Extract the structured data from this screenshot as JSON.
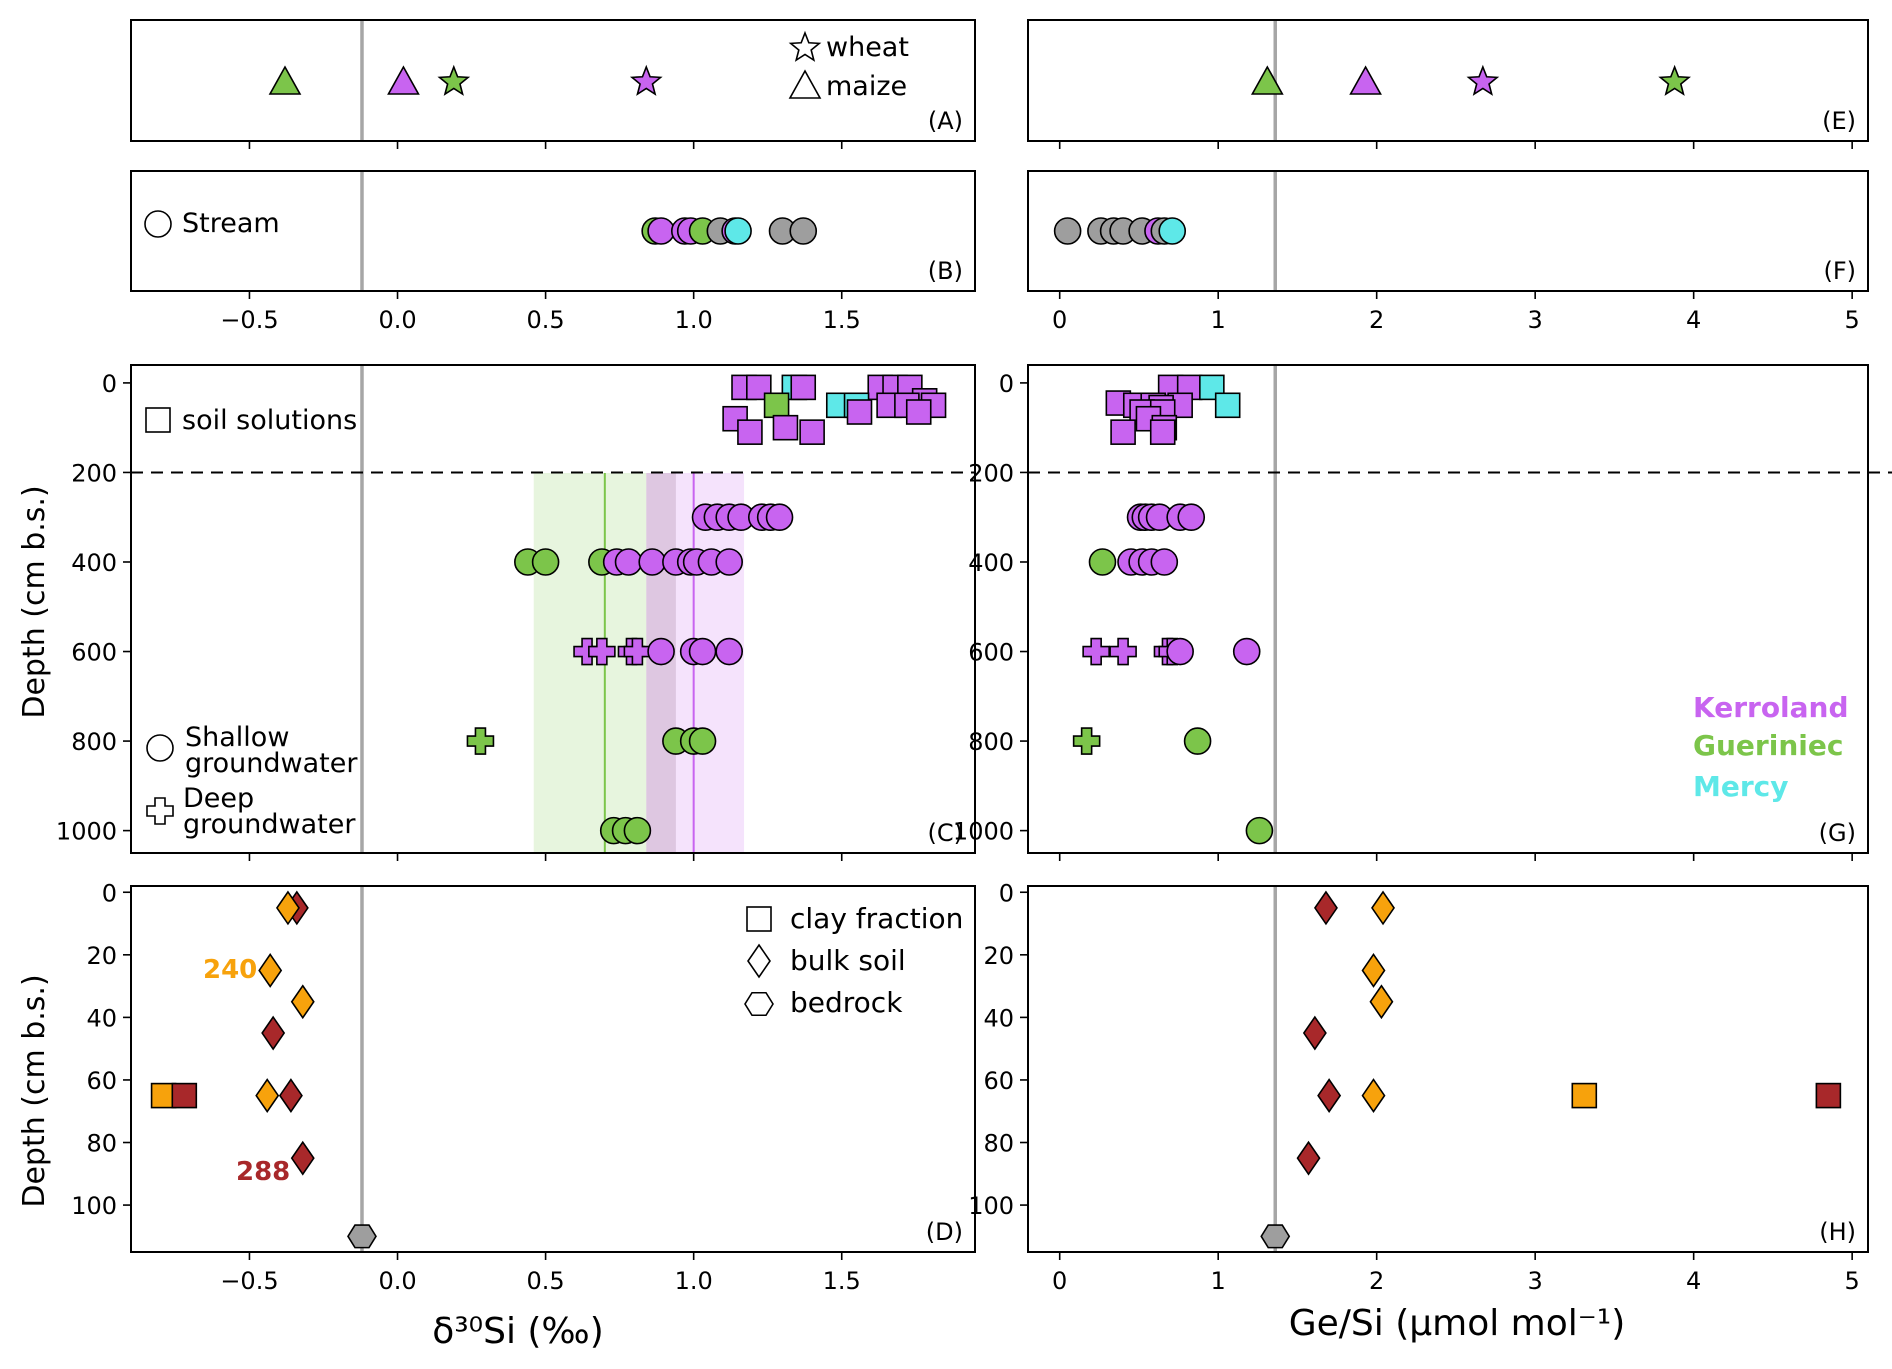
{
  "figure": {
    "xlabel_left": "δ³⁰Si (‰)",
    "xlabel_right": "Ge/Si (µmol mol⁻¹)",
    "ylabel_c": "Depth (cm b.s.)",
    "ylabel_d": "Depth (cm b.s.)"
  },
  "colors": {
    "purple": "#c864f0",
    "green": "#7cc54a",
    "cyan": "#5ee8e8",
    "grey": "#9e9e9e",
    "orange": "#f7a20c",
    "darkred": "#a8282a",
    "refline": "#a6a6a6"
  },
  "legends": {
    "wheat": "wheat",
    "maize": "maize",
    "stream": "Stream",
    "soil_solutions": "soil solutions",
    "shallow_gw": [
      "Shallow",
      "groundwater"
    ],
    "deep_gw": [
      "Deep",
      "groundwater"
    ],
    "sites": [
      {
        "name": "Kerroland",
        "color": "#c864f0"
      },
      {
        "name": "Gueriniec",
        "color": "#7cc54a"
      },
      {
        "name": "Mercy",
        "color": "#5ee8e8"
      }
    ],
    "clay": "clay fraction",
    "bulk": "bulk soil",
    "bedrock": "bedrock",
    "ann_240": "240",
    "ann_288": "288"
  },
  "chart_data": [
    {
      "id": "A",
      "label": "(A)",
      "type": "scatter",
      "xlim": [
        -0.9,
        1.95
      ],
      "xticks": [
        -0.5,
        0.0,
        0.5,
        1.0,
        1.5
      ],
      "refline_x": -0.12,
      "points": [
        {
          "x": -0.38,
          "marker": "triangle",
          "site": "Gueriniec",
          "color": "green"
        },
        {
          "x": 0.02,
          "marker": "triangle",
          "site": "Kerroland",
          "color": "purple"
        },
        {
          "x": 0.19,
          "marker": "star",
          "site": "Gueriniec",
          "color": "green"
        },
        {
          "x": 0.84,
          "marker": "star",
          "site": "Kerroland",
          "color": "purple"
        }
      ]
    },
    {
      "id": "B",
      "label": "(B)",
      "type": "scatter",
      "xlim": [
        -0.9,
        1.95
      ],
      "xticks": [
        -0.5,
        0.0,
        0.5,
        1.0,
        1.5
      ],
      "xticklabels": [
        "−0.5",
        "0.0",
        "0.5",
        "1.0",
        "1.5"
      ],
      "refline_x": -0.12,
      "points": [
        {
          "x": 0.87,
          "color": "green"
        },
        {
          "x": 0.89,
          "color": "purple"
        },
        {
          "x": 0.97,
          "color": "purple"
        },
        {
          "x": 0.99,
          "color": "purple"
        },
        {
          "x": 1.03,
          "color": "green"
        },
        {
          "x": 1.09,
          "color": "grey"
        },
        {
          "x": 1.14,
          "color": "purple"
        },
        {
          "x": 1.15,
          "color": "cyan"
        },
        {
          "x": 1.3,
          "color": "grey"
        },
        {
          "x": 1.37,
          "color": "grey"
        }
      ]
    },
    {
      "id": "C",
      "label": "(C)",
      "type": "scatter",
      "xlim": [
        -0.9,
        1.95
      ],
      "ylim": [
        1050,
        -40
      ],
      "xticks": [
        -0.5,
        0.0,
        0.5,
        1.0,
        1.5
      ],
      "yticks": [
        0,
        200,
        400,
        600,
        800,
        1000
      ],
      "refline_x": -0.12,
      "dashed_y": 200,
      "bands": [
        {
          "x0": 0.46,
          "x1": 0.84,
          "color": "green",
          "mean": 0.7
        },
        {
          "x0": 0.84,
          "x1": 1.17,
          "color": "purple",
          "mean": 1.0
        }
      ],
      "points": [
        {
          "x": 1.17,
          "y": 10,
          "marker": "square",
          "color": "purple"
        },
        {
          "x": 1.22,
          "y": 10,
          "marker": "square",
          "color": "purple"
        },
        {
          "x": 1.34,
          "y": 10,
          "marker": "square",
          "color": "cyan"
        },
        {
          "x": 1.37,
          "y": 10,
          "marker": "square",
          "color": "purple"
        },
        {
          "x": 1.63,
          "y": 10,
          "marker": "square",
          "color": "purple"
        },
        {
          "x": 1.68,
          "y": 10,
          "marker": "square",
          "color": "purple"
        },
        {
          "x": 1.73,
          "y": 10,
          "marker": "square",
          "color": "purple"
        },
        {
          "x": 1.78,
          "y": 40,
          "marker": "square",
          "color": "purple"
        },
        {
          "x": 1.28,
          "y": 50,
          "marker": "square",
          "color": "green"
        },
        {
          "x": 1.49,
          "y": 50,
          "marker": "square",
          "color": "cyan"
        },
        {
          "x": 1.55,
          "y": 50,
          "marker": "square",
          "color": "cyan"
        },
        {
          "x": 1.66,
          "y": 50,
          "marker": "square",
          "color": "purple"
        },
        {
          "x": 1.72,
          "y": 50,
          "marker": "square",
          "color": "purple"
        },
        {
          "x": 1.81,
          "y": 50,
          "marker": "square",
          "color": "purple"
        },
        {
          "x": 1.56,
          "y": 65,
          "marker": "square",
          "color": "purple"
        },
        {
          "x": 1.76,
          "y": 65,
          "marker": "square",
          "color": "purple"
        },
        {
          "x": 1.14,
          "y": 80,
          "marker": "square",
          "color": "purple"
        },
        {
          "x": 1.31,
          "y": 100,
          "marker": "square",
          "color": "purple"
        },
        {
          "x": 1.19,
          "y": 110,
          "marker": "square",
          "color": "purple"
        },
        {
          "x": 1.4,
          "y": 110,
          "marker": "square",
          "color": "purple"
        },
        {
          "x": 1.04,
          "y": 300,
          "marker": "circle",
          "color": "purple"
        },
        {
          "x": 1.08,
          "y": 300,
          "marker": "circle",
          "color": "purple"
        },
        {
          "x": 1.12,
          "y": 300,
          "marker": "circle",
          "color": "purple"
        },
        {
          "x": 1.16,
          "y": 300,
          "marker": "circle",
          "color": "purple"
        },
        {
          "x": 1.23,
          "y": 300,
          "marker": "circle",
          "color": "purple"
        },
        {
          "x": 1.26,
          "y": 300,
          "marker": "circle",
          "color": "purple"
        },
        {
          "x": 1.29,
          "y": 300,
          "marker": "circle",
          "color": "purple"
        },
        {
          "x": 0.44,
          "y": 400,
          "marker": "circle",
          "color": "green"
        },
        {
          "x": 0.5,
          "y": 400,
          "marker": "circle",
          "color": "green"
        },
        {
          "x": 0.69,
          "y": 400,
          "marker": "circle",
          "color": "green"
        },
        {
          "x": 0.74,
          "y": 400,
          "marker": "circle",
          "color": "purple"
        },
        {
          "x": 0.78,
          "y": 400,
          "marker": "circle",
          "color": "purple"
        },
        {
          "x": 0.86,
          "y": 400,
          "marker": "circle",
          "color": "purple"
        },
        {
          "x": 0.94,
          "y": 400,
          "marker": "circle",
          "color": "purple"
        },
        {
          "x": 0.99,
          "y": 400,
          "marker": "circle",
          "color": "purple"
        },
        {
          "x": 1.01,
          "y": 400,
          "marker": "circle",
          "color": "purple"
        },
        {
          "x": 1.06,
          "y": 400,
          "marker": "circle",
          "color": "purple"
        },
        {
          "x": 1.12,
          "y": 400,
          "marker": "circle",
          "color": "purple"
        },
        {
          "x": 0.64,
          "y": 600,
          "marker": "cross",
          "color": "purple"
        },
        {
          "x": 0.69,
          "y": 600,
          "marker": "cross",
          "color": "purple"
        },
        {
          "x": 0.79,
          "y": 600,
          "marker": "cross",
          "color": "purple"
        },
        {
          "x": 0.81,
          "y": 600,
          "marker": "cross",
          "color": "purple"
        },
        {
          "x": 0.89,
          "y": 600,
          "marker": "circle",
          "color": "purple"
        },
        {
          "x": 1.0,
          "y": 600,
          "marker": "circle",
          "color": "purple"
        },
        {
          "x": 1.03,
          "y": 600,
          "marker": "circle",
          "color": "purple"
        },
        {
          "x": 1.12,
          "y": 600,
          "marker": "circle",
          "color": "purple"
        },
        {
          "x": 0.28,
          "y": 800,
          "marker": "cross",
          "color": "green"
        },
        {
          "x": 0.94,
          "y": 800,
          "marker": "circle",
          "color": "green"
        },
        {
          "x": 1.0,
          "y": 800,
          "marker": "circle",
          "color": "green"
        },
        {
          "x": 1.03,
          "y": 800,
          "marker": "circle",
          "color": "green"
        },
        {
          "x": 0.73,
          "y": 1000,
          "marker": "circle",
          "color": "green"
        },
        {
          "x": 0.77,
          "y": 1000,
          "marker": "circle",
          "color": "green"
        },
        {
          "x": 0.81,
          "y": 1000,
          "marker": "circle",
          "color": "green"
        }
      ]
    },
    {
      "id": "D",
      "label": "(D)",
      "type": "scatter",
      "xlim": [
        -0.9,
        1.95
      ],
      "ylim": [
        115,
        -2
      ],
      "xticks": [
        -0.5,
        0.0,
        0.5,
        1.0,
        1.5
      ],
      "xticklabels": [
        "−0.5",
        "0.0",
        "0.5",
        "1.0",
        "1.5"
      ],
      "yticks": [
        0,
        20,
        40,
        60,
        80,
        100
      ],
      "refline_x": -0.12,
      "points": [
        {
          "x": -0.34,
          "y": 5,
          "marker": "diamond",
          "color": "darkred"
        },
        {
          "x": -0.37,
          "y": 5,
          "marker": "diamond",
          "color": "orange"
        },
        {
          "x": -0.43,
          "y": 25,
          "marker": "diamond",
          "color": "orange"
        },
        {
          "x": -0.32,
          "y": 35,
          "marker": "diamond",
          "color": "orange"
        },
        {
          "x": -0.42,
          "y": 45,
          "marker": "diamond",
          "color": "darkred"
        },
        {
          "x": -0.79,
          "y": 65,
          "marker": "square",
          "color": "orange"
        },
        {
          "x": -0.72,
          "y": 65,
          "marker": "square",
          "color": "darkred"
        },
        {
          "x": -0.44,
          "y": 65,
          "marker": "diamond",
          "color": "orange"
        },
        {
          "x": -0.36,
          "y": 65,
          "marker": "diamond",
          "color": "darkred"
        },
        {
          "x": -0.32,
          "y": 85,
          "marker": "diamond",
          "color": "darkred"
        },
        {
          "x": -0.12,
          "y": 110,
          "marker": "hexagon",
          "color": "grey"
        }
      ]
    },
    {
      "id": "E",
      "label": "(E)",
      "type": "scatter",
      "xlim": [
        -0.2,
        5.1
      ],
      "xticks": [
        0,
        1,
        2,
        3,
        4,
        5
      ],
      "refline_x": 1.36,
      "points": [
        {
          "x": 1.31,
          "marker": "triangle",
          "color": "green"
        },
        {
          "x": 1.93,
          "marker": "triangle",
          "color": "purple"
        },
        {
          "x": 2.67,
          "marker": "star",
          "color": "purple"
        },
        {
          "x": 3.88,
          "marker": "star",
          "color": "green"
        }
      ]
    },
    {
      "id": "F",
      "label": "(F)",
      "type": "scatter",
      "xlim": [
        -0.2,
        5.1
      ],
      "xticks": [
        0,
        1,
        2,
        3,
        4,
        5
      ],
      "xticklabels": [
        "0",
        "1",
        "2",
        "3",
        "4",
        "5"
      ],
      "refline_x": 1.36,
      "points": [
        {
          "x": 0.05,
          "color": "grey"
        },
        {
          "x": 0.26,
          "color": "grey"
        },
        {
          "x": 0.34,
          "color": "grey"
        },
        {
          "x": 0.4,
          "color": "grey"
        },
        {
          "x": 0.52,
          "color": "grey"
        },
        {
          "x": 0.62,
          "color": "purple"
        },
        {
          "x": 0.66,
          "color": "grey"
        },
        {
          "x": 0.71,
          "color": "cyan"
        }
      ]
    },
    {
      "id": "G",
      "label": "(G)",
      "type": "scatter",
      "xlim": [
        -0.2,
        5.1
      ],
      "ylim": [
        1050,
        -40
      ],
      "xticks": [
        0,
        1,
        2,
        3,
        4,
        5
      ],
      "yticks": [
        0,
        200,
        400,
        600,
        800,
        1000
      ],
      "refline_x": 1.36,
      "dashed_y": 200,
      "points": [
        {
          "x": 0.7,
          "y": 10,
          "marker": "square",
          "color": "purple"
        },
        {
          "x": 0.82,
          "y": 10,
          "marker": "square",
          "color": "purple"
        },
        {
          "x": 0.96,
          "y": 10,
          "marker": "square",
          "color": "cyan"
        },
        {
          "x": 0.37,
          "y": 45,
          "marker": "square",
          "color": "purple"
        },
        {
          "x": 0.48,
          "y": 50,
          "marker": "square",
          "color": "purple"
        },
        {
          "x": 0.59,
          "y": 50,
          "marker": "square",
          "color": "purple"
        },
        {
          "x": 0.76,
          "y": 50,
          "marker": "square",
          "color": "purple"
        },
        {
          "x": 1.06,
          "y": 50,
          "marker": "square",
          "color": "cyan"
        },
        {
          "x": 0.64,
          "y": 55,
          "marker": "square",
          "color": "purple"
        },
        {
          "x": 0.52,
          "y": 65,
          "marker": "square",
          "color": "purple"
        },
        {
          "x": 0.65,
          "y": 65,
          "marker": "square",
          "color": "purple"
        },
        {
          "x": 0.56,
          "y": 80,
          "marker": "square",
          "color": "purple"
        },
        {
          "x": 0.66,
          "y": 100,
          "marker": "square",
          "color": "purple"
        },
        {
          "x": 0.4,
          "y": 110,
          "marker": "square",
          "color": "purple"
        },
        {
          "x": 0.65,
          "y": 110,
          "marker": "square",
          "color": "purple"
        },
        {
          "x": 0.51,
          "y": 300,
          "marker": "circle",
          "color": "purple"
        },
        {
          "x": 0.54,
          "y": 300,
          "marker": "circle",
          "color": "purple"
        },
        {
          "x": 0.58,
          "y": 300,
          "marker": "circle",
          "color": "purple"
        },
        {
          "x": 0.63,
          "y": 300,
          "marker": "circle",
          "color": "purple"
        },
        {
          "x": 0.76,
          "y": 300,
          "marker": "circle",
          "color": "purple"
        },
        {
          "x": 0.83,
          "y": 300,
          "marker": "circle",
          "color": "purple"
        },
        {
          "x": 0.27,
          "y": 400,
          "marker": "circle",
          "color": "green"
        },
        {
          "x": 0.45,
          "y": 400,
          "marker": "circle",
          "color": "purple"
        },
        {
          "x": 0.52,
          "y": 400,
          "marker": "circle",
          "color": "purple"
        },
        {
          "x": 0.58,
          "y": 400,
          "marker": "circle",
          "color": "purple"
        },
        {
          "x": 0.66,
          "y": 400,
          "marker": "circle",
          "color": "purple"
        },
        {
          "x": 0.23,
          "y": 600,
          "marker": "cross",
          "color": "purple"
        },
        {
          "x": 0.4,
          "y": 600,
          "marker": "cross",
          "color": "purple"
        },
        {
          "x": 0.68,
          "y": 600,
          "marker": "cross",
          "color": "purple"
        },
        {
          "x": 0.71,
          "y": 600,
          "marker": "cross",
          "color": "purple"
        },
        {
          "x": 0.76,
          "y": 600,
          "marker": "circle",
          "color": "purple"
        },
        {
          "x": 1.18,
          "y": 600,
          "marker": "circle",
          "color": "purple"
        },
        {
          "x": 0.17,
          "y": 800,
          "marker": "cross",
          "color": "green"
        },
        {
          "x": 0.87,
          "y": 800,
          "marker": "circle",
          "color": "green"
        },
        {
          "x": 1.26,
          "y": 1000,
          "marker": "circle",
          "color": "green"
        }
      ]
    },
    {
      "id": "H",
      "label": "(H)",
      "type": "scatter",
      "xlim": [
        -0.2,
        5.1
      ],
      "ylim": [
        115,
        -2
      ],
      "xticks": [
        0,
        1,
        2,
        3,
        4,
        5
      ],
      "xticklabels": [
        "0",
        "1",
        "2",
        "3",
        "4",
        "5"
      ],
      "yticks": [
        0,
        20,
        40,
        60,
        80,
        100
      ],
      "refline_x": 1.36,
      "points": [
        {
          "x": 1.68,
          "y": 5,
          "marker": "diamond",
          "color": "darkred"
        },
        {
          "x": 2.04,
          "y": 5,
          "marker": "diamond",
          "color": "orange"
        },
        {
          "x": 1.98,
          "y": 25,
          "marker": "diamond",
          "color": "orange"
        },
        {
          "x": 2.03,
          "y": 35,
          "marker": "diamond",
          "color": "orange"
        },
        {
          "x": 1.61,
          "y": 45,
          "marker": "diamond",
          "color": "darkred"
        },
        {
          "x": 1.7,
          "y": 65,
          "marker": "diamond",
          "color": "darkred"
        },
        {
          "x": 1.98,
          "y": 65,
          "marker": "diamond",
          "color": "orange"
        },
        {
          "x": 3.31,
          "y": 65,
          "marker": "square",
          "color": "orange"
        },
        {
          "x": 4.85,
          "y": 65,
          "marker": "square",
          "color": "darkred"
        },
        {
          "x": 1.57,
          "y": 85,
          "marker": "diamond",
          "color": "darkred"
        },
        {
          "x": 1.36,
          "y": 110,
          "marker": "hexagon",
          "color": "grey"
        }
      ]
    }
  ]
}
